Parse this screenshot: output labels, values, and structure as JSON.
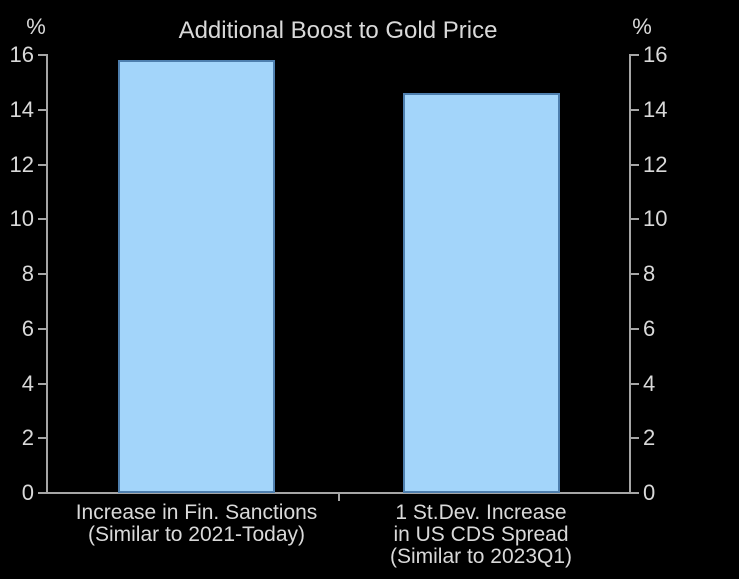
{
  "chart_data": {
    "type": "bar",
    "title": "Additional Boost to Gold Price",
    "y_unit_left": "%",
    "y_unit_right": "%",
    "ylabel": "",
    "xlabel": "",
    "ylim": [
      0,
      16
    ],
    "yticks": [
      0,
      2,
      4,
      6,
      8,
      10,
      12,
      14,
      16
    ],
    "categories": [
      [
        "Increase in Fin. Sanctions",
        "(Similar to 2021-Today)"
      ],
      [
        "1 St.Dev. Increase",
        "in US CDS Spread",
        "(Similar to 2023Q1)"
      ]
    ],
    "values": [
      15.8,
      14.6
    ],
    "grid": false,
    "legend": null,
    "axis_style": "mirrored-left-right",
    "colors": {
      "background": "#000000",
      "text": "#d9d9d9",
      "axis": "#a6a6a6",
      "bar_fill": "#a3d5fa",
      "bar_border": "#4e7fae"
    }
  }
}
